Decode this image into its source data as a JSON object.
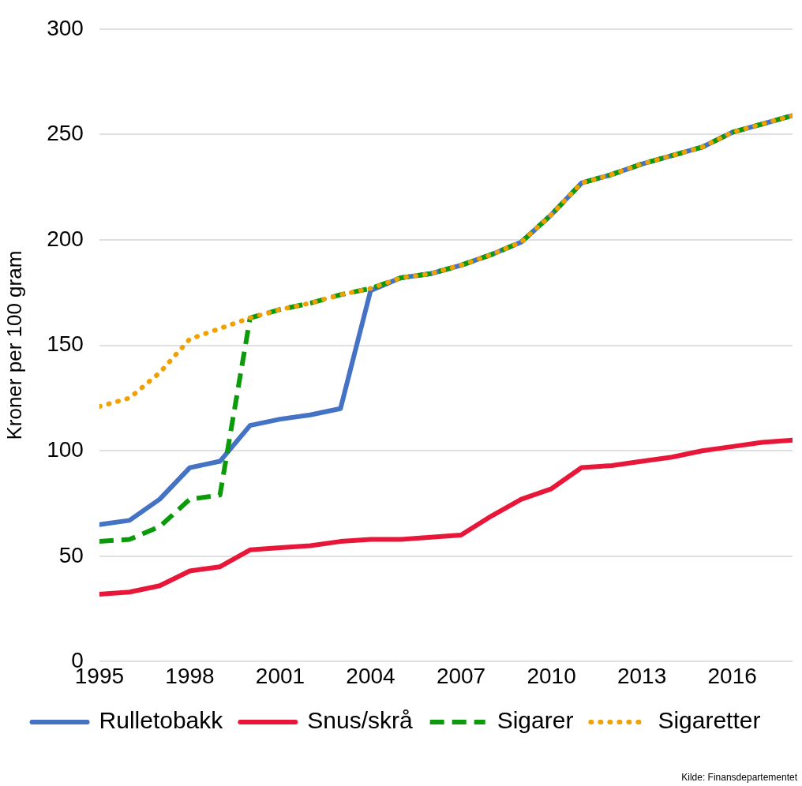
{
  "chart_data": {
    "type": "line",
    "ylabel": "Kroner per 100 gram",
    "x": [
      1995,
      1996,
      1997,
      1998,
      1999,
      2000,
      2001,
      2002,
      2003,
      2004,
      2005,
      2006,
      2007,
      2008,
      2009,
      2010,
      2011,
      2012,
      2013,
      2014,
      2015,
      2016,
      2017,
      2018
    ],
    "series": [
      {
        "name": "Rulletobakk",
        "color": "#4472c4",
        "line_style": "solid",
        "values": [
          65,
          67,
          77,
          92,
          95,
          112,
          115,
          117,
          120,
          176,
          182,
          184,
          188,
          193,
          199,
          212,
          227,
          231,
          236,
          240,
          244,
          251,
          255,
          259
        ]
      },
      {
        "name": "Snus/skrå",
        "color": "#e8173a",
        "line_style": "solid",
        "values": [
          32,
          33,
          36,
          43,
          45,
          53,
          54,
          55,
          57,
          58,
          58,
          59,
          60,
          69,
          77,
          82,
          92,
          93,
          95,
          97,
          100,
          102,
          104,
          105
        ]
      },
      {
        "name": "Sigarer",
        "color": "#0a9a0a",
        "line_style": "dashed",
        "values": [
          57,
          58,
          64,
          77,
          79,
          163,
          167,
          170,
          174,
          177,
          182,
          184,
          188,
          193,
          199,
          212,
          227,
          231,
          236,
          240,
          244,
          251,
          255,
          259
        ]
      },
      {
        "name": "Sigaretter",
        "color": "#f0a000",
        "line_style": "dotted",
        "values": [
          121,
          125,
          137,
          153,
          158,
          163,
          167,
          170,
          174,
          177,
          182,
          184,
          188,
          193,
          199,
          212,
          227,
          231,
          236,
          240,
          244,
          251,
          255,
          259
        ]
      }
    ],
    "xlim": [
      1995,
      2018
    ],
    "xticks": [
      1995,
      1998,
      2001,
      2004,
      2007,
      2010,
      2013,
      2016
    ],
    "ylim": [
      0,
      300
    ],
    "yticks": [
      0,
      50,
      100,
      150,
      200,
      250,
      300
    ],
    "grid": "y",
    "legend": "bottom",
    "marker": "none",
    "annotations": [
      "Kilde: Finansdepartementet"
    ]
  }
}
